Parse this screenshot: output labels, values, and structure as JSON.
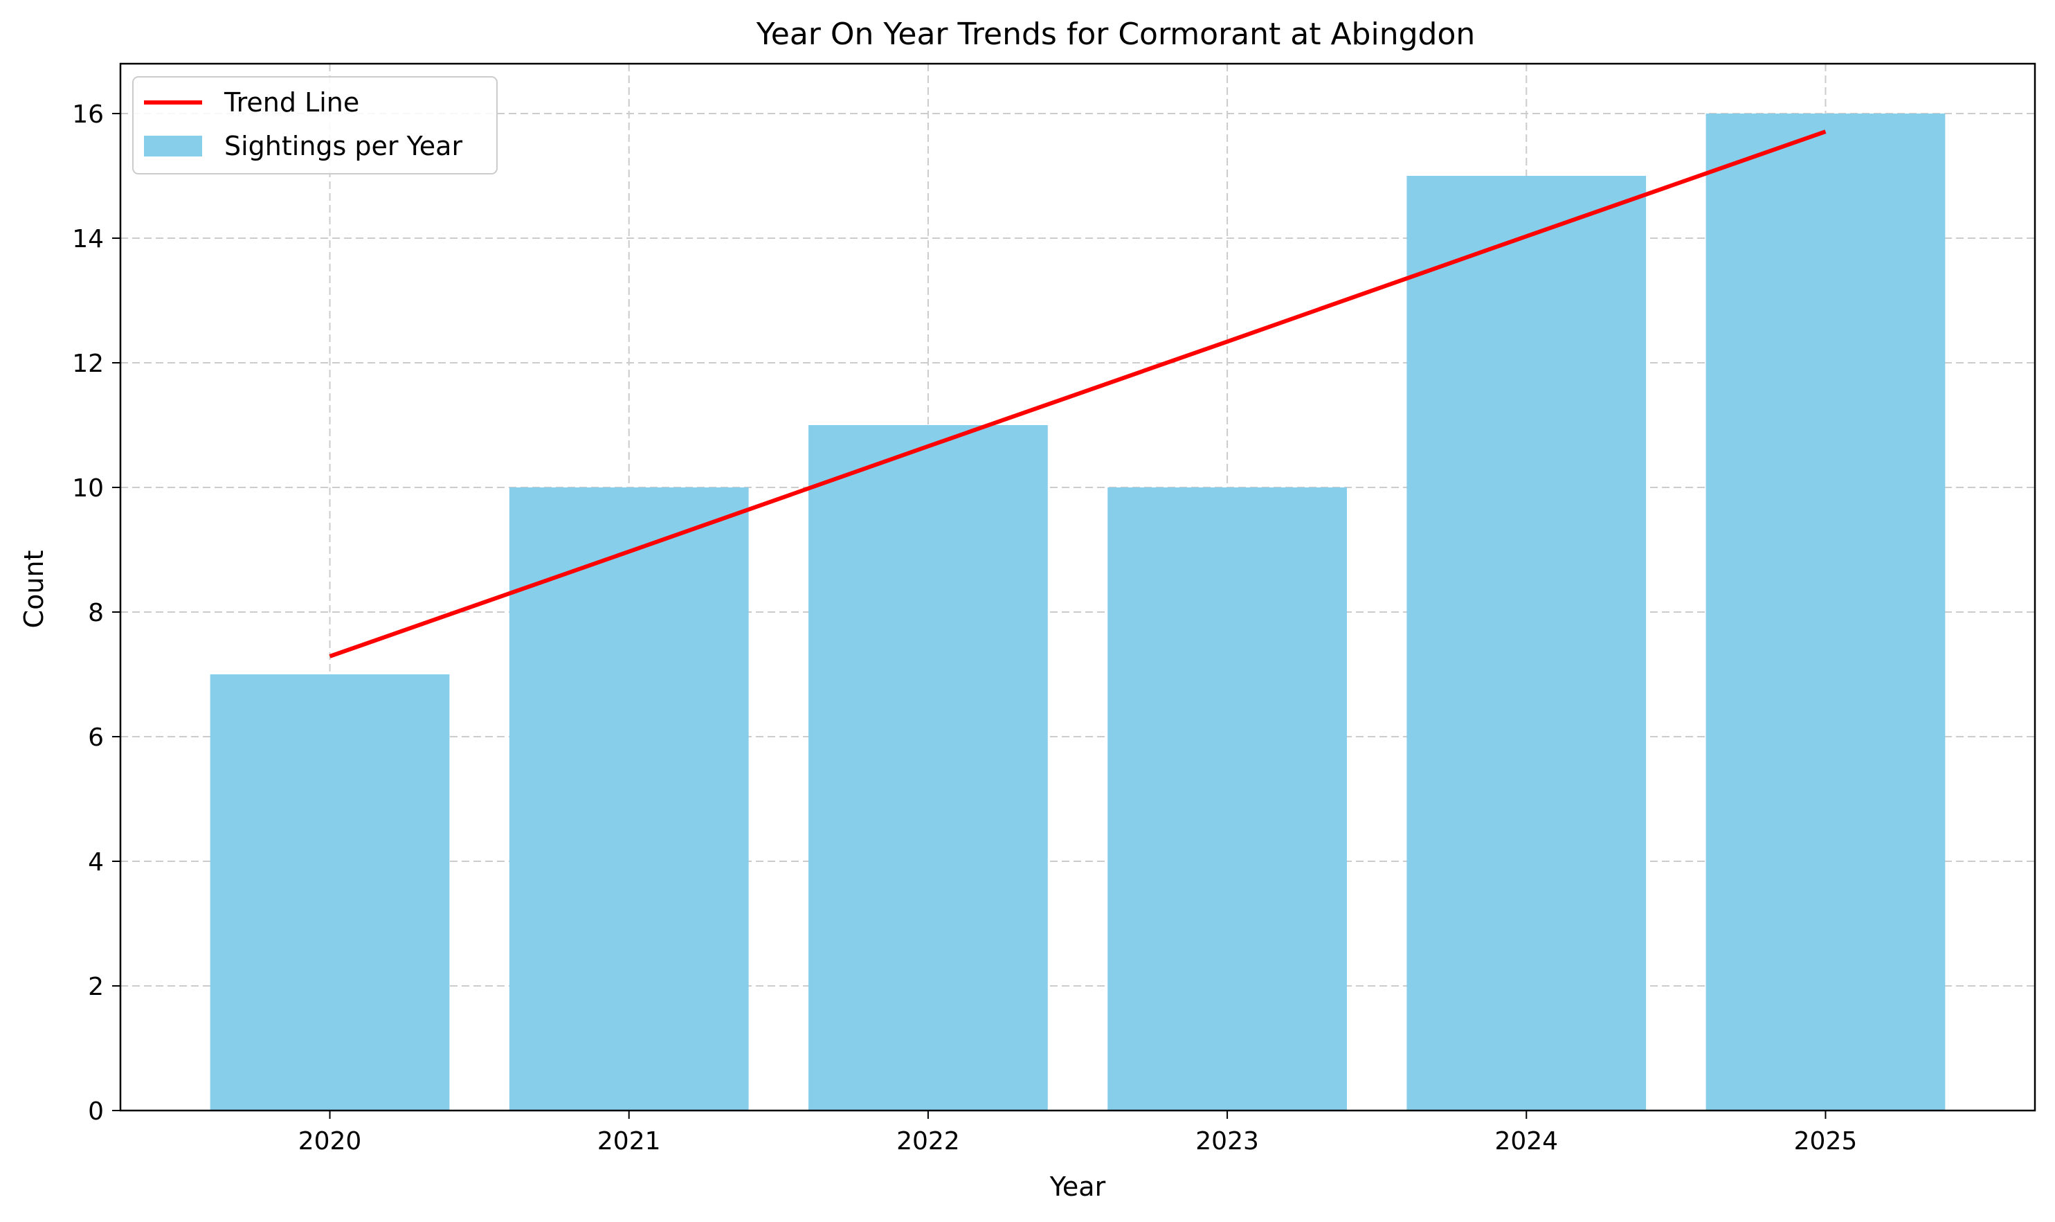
{
  "chart_data": {
    "type": "bar",
    "title": "Year On Year Trends for Cormorant at Abingdon",
    "xlabel": "Year",
    "ylabel": "Count",
    "categories": [
      "2020",
      "2021",
      "2022",
      "2023",
      "2024",
      "2025"
    ],
    "series": [
      {
        "name": "Sightings per Year",
        "type": "bar",
        "color": "#87CEEB",
        "values": [
          7,
          10,
          11,
          10,
          15,
          16
        ]
      },
      {
        "name": "Trend Line",
        "type": "line",
        "color": "#FF0000",
        "values": [
          7.29,
          8.97,
          10.66,
          12.34,
          14.03,
          15.71
        ]
      }
    ],
    "ylim": [
      0,
      16.8
    ],
    "yticks": [
      0,
      2,
      4,
      6,
      8,
      10,
      12,
      14,
      16
    ],
    "grid": true,
    "legend_position": "top-left"
  }
}
